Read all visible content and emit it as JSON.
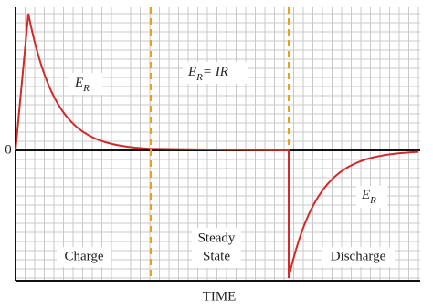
{
  "axis": {
    "zero_label": "0",
    "x_label": "TIME"
  },
  "labels": {
    "charge_er": {
      "symbol": "E",
      "subscript": "R"
    },
    "steady_er": {
      "symbol": "E",
      "subscript": "R",
      "rest": "= IR"
    },
    "discharge_er": {
      "symbol": "E",
      "subscript": "R"
    }
  },
  "phases": {
    "charge": "Charge",
    "steady_line1": "Steady",
    "steady_line2": "State",
    "discharge": "Discharge"
  }
}
